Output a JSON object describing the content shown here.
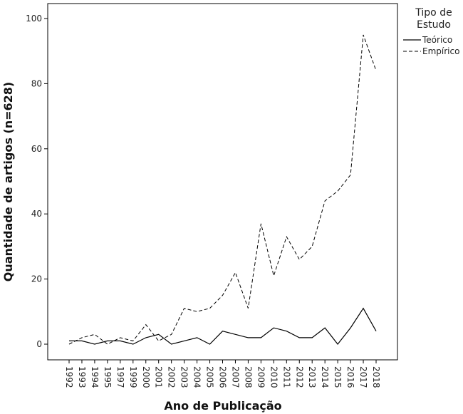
{
  "chart_data": {
    "type": "line",
    "xlabel": "Ano de Publicação",
    "ylabel": "Quantidade de artigos (n=628)",
    "ylim": [
      0,
      100
    ],
    "y_ticks": [
      0,
      20,
      40,
      60,
      80,
      100
    ],
    "x": [
      "1992",
      "1993",
      "1994",
      "1995",
      "1997",
      "1999",
      "2000",
      "2001",
      "2002",
      "2003",
      "2004",
      "2005",
      "2006",
      "2007",
      "2008",
      "2009",
      "2010",
      "2011",
      "2012",
      "2013",
      "2014",
      "2015",
      "2016",
      "2017",
      "2018"
    ],
    "series": [
      {
        "name": "Teórico",
        "style": "solid",
        "values": [
          1,
          1,
          0,
          1,
          1,
          0,
          2,
          3,
          0,
          1,
          2,
          0,
          4,
          3,
          2,
          2,
          5,
          4,
          2,
          2,
          5,
          0,
          5,
          11,
          4
        ]
      },
      {
        "name": "Empírico",
        "style": "dashed",
        "values": [
          0,
          2,
          3,
          0,
          2,
          1,
          6,
          1,
          3,
          11,
          10,
          11,
          15,
          22,
          11,
          37,
          21,
          33,
          26,
          30,
          44,
          47,
          52,
          95,
          84
        ]
      }
    ],
    "legend": {
      "title_lines": [
        "Tipo de",
        "Estudo"
      ],
      "placement": "right"
    }
  }
}
